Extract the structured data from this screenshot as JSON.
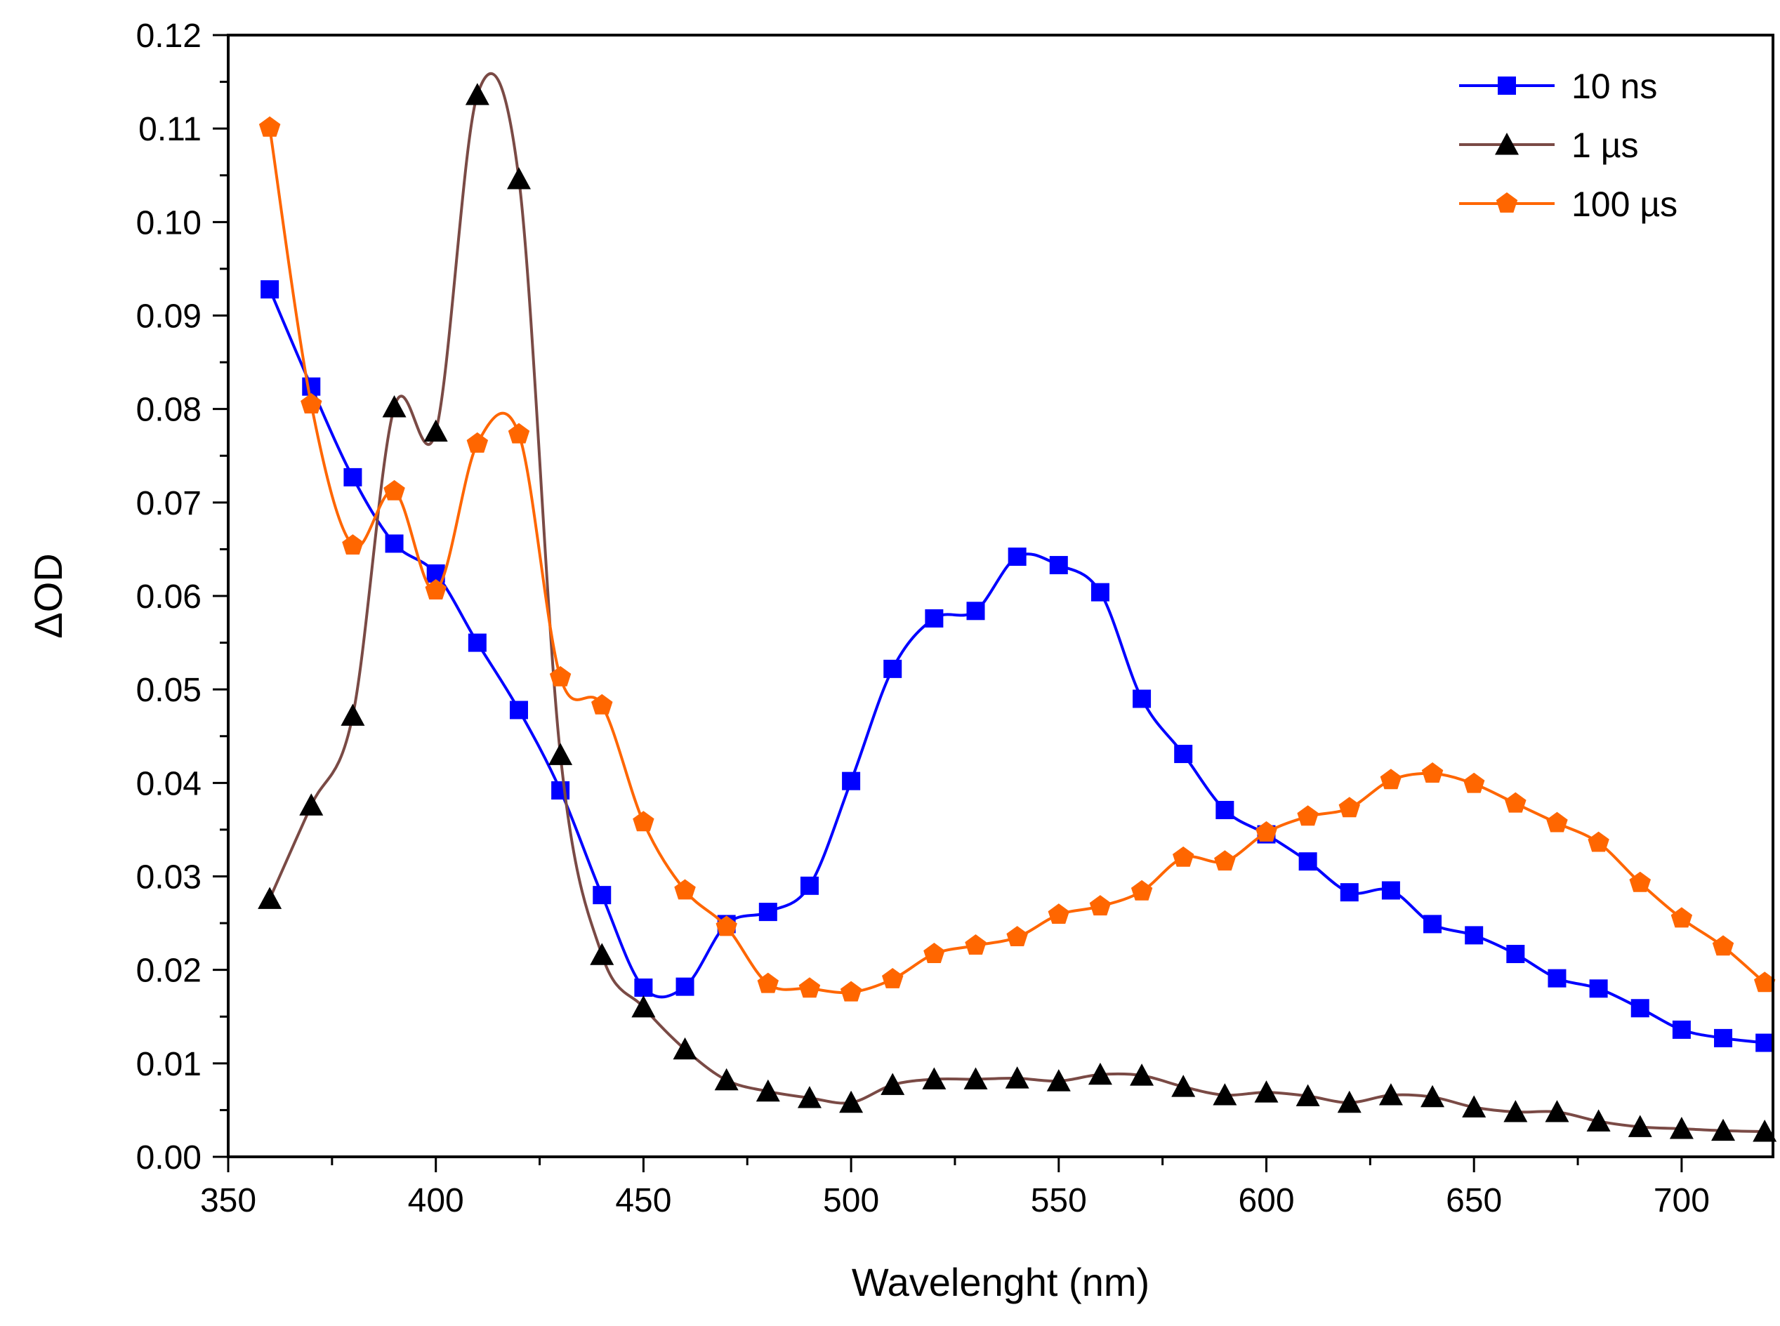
{
  "chart_data": {
    "type": "line",
    "title": "",
    "xlabel": "Wavelenght (nm)",
    "ylabel": "ΔOD",
    "xlim": [
      350,
      722
    ],
    "ylim": [
      0.0,
      0.12
    ],
    "xticks": [
      350,
      400,
      450,
      500,
      550,
      600,
      650,
      700
    ],
    "xtick_labels": [
      "350",
      "400",
      "450",
      "500",
      "550",
      "600",
      "650",
      "700"
    ],
    "yticks": [
      0.0,
      0.01,
      0.02,
      0.03,
      0.04,
      0.05,
      0.06,
      0.07,
      0.08,
      0.09,
      0.1,
      0.11,
      0.12
    ],
    "ytick_labels": [
      "0.00",
      "0.01",
      "0.02",
      "0.03",
      "0.04",
      "0.05",
      "0.06",
      "0.07",
      "0.08",
      "0.09",
      "0.10",
      "0.11",
      "0.12"
    ],
    "grid": false,
    "legend_position": "top-right",
    "x": [
      360,
      370,
      380,
      390,
      400,
      410,
      420,
      430,
      440,
      450,
      460,
      470,
      480,
      490,
      500,
      510,
      520,
      530,
      540,
      550,
      560,
      570,
      580,
      590,
      600,
      610,
      620,
      630,
      640,
      650,
      660,
      670,
      680,
      690,
      700,
      710,
      720
    ],
    "series": [
      {
        "name": "10 ns",
        "color": "#0000ff",
        "marker": "square",
        "values": [
          0.0928,
          0.0824,
          0.0727,
          0.0656,
          0.0624,
          0.055,
          0.0478,
          0.0392,
          0.028,
          0.0181,
          0.0182,
          0.0249,
          0.0262,
          0.029,
          0.0402,
          0.0522,
          0.0576,
          0.0584,
          0.0642,
          0.0633,
          0.0604,
          0.049,
          0.0431,
          0.0371,
          0.0345,
          0.0316,
          0.0283,
          0.0285,
          0.0249,
          0.0237,
          0.0217,
          0.0191,
          0.018,
          0.0159,
          0.0136,
          0.0127,
          0.0122
        ]
      },
      {
        "name": "1 µs",
        "color": "#7a4a45",
        "marker": "triangle",
        "values": [
          0.0276,
          0.0376,
          0.0472,
          0.0802,
          0.0776,
          0.1136,
          0.1046,
          0.043,
          0.0216,
          0.016,
          0.0115,
          0.0082,
          0.007,
          0.0063,
          0.0058,
          0.0077,
          0.0083,
          0.0083,
          0.0084,
          0.0081,
          0.0088,
          0.0087,
          0.0075,
          0.0066,
          0.0069,
          0.0065,
          0.0058,
          0.0066,
          0.0064,
          0.0053,
          0.0048,
          0.0048,
          0.0038,
          0.0032,
          0.003,
          0.0028,
          0.0027
        ]
      },
      {
        "name": "100 µs",
        "color": "#ff6600",
        "marker": "pentagon",
        "values": [
          0.1101,
          0.0805,
          0.0654,
          0.0712,
          0.0606,
          0.0763,
          0.0773,
          0.0513,
          0.0483,
          0.0358,
          0.0285,
          0.0246,
          0.0185,
          0.018,
          0.0176,
          0.019,
          0.0217,
          0.0226,
          0.0235,
          0.0259,
          0.0268,
          0.0284,
          0.032,
          0.0316,
          0.0347,
          0.0364,
          0.0373,
          0.0403,
          0.041,
          0.0399,
          0.0378,
          0.0357,
          0.0336,
          0.0293,
          0.0255,
          0.0225,
          0.0186
        ]
      }
    ]
  }
}
